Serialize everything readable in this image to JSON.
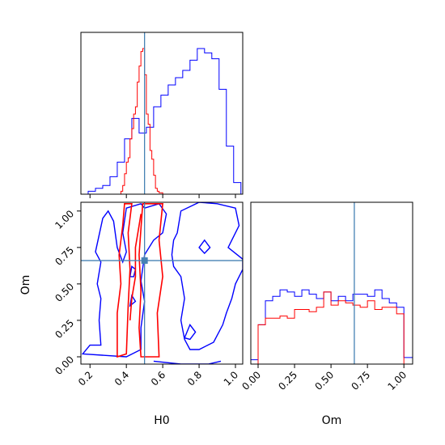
{
  "chart_data": {
    "type": "corner",
    "parameters": [
      "H0",
      "Om"
    ],
    "truths": {
      "H0": 0.5,
      "Om": 0.66
    },
    "colors": {
      "blue": "#0000ff",
      "red": "#ff0000",
      "truth": "#4682b4",
      "frame": "#000000"
    },
    "axes": {
      "H0": {
        "label": "H0",
        "range": [
          0.15,
          1.04
        ],
        "ticks": [
          0.2,
          0.4,
          0.6,
          0.8,
          1.0
        ],
        "tick_labels": [
          "0.2",
          "0.4",
          "0.6",
          "0.8",
          "1.0"
        ]
      },
      "Om": {
        "label": "Om",
        "range": [
          -0.05,
          1.06
        ],
        "ticks": [
          0.0,
          0.25,
          0.5,
          0.75,
          1.0
        ],
        "tick_labels": [
          "0.00",
          "0.25",
          "0.50",
          "0.75",
          "1.00"
        ]
      }
    },
    "hist_H0": {
      "bin_edges": [
        0.15,
        0.19,
        0.23,
        0.27,
        0.31,
        0.35,
        0.39,
        0.43,
        0.47,
        0.51,
        0.55,
        0.59,
        0.63,
        0.67,
        0.71,
        0.75,
        0.79,
        0.83,
        0.87,
        0.91,
        0.95,
        0.99,
        1.03
      ],
      "series": [
        {
          "color": "blue",
          "counts": [
            0,
            0.02,
            0.04,
            0.06,
            0.12,
            0.22,
            0.38,
            0.52,
            0.42,
            0.46,
            0.6,
            0.68,
            0.75,
            0.8,
            0.85,
            0.92,
            1.0,
            0.97,
            0.93,
            0.72,
            0.33,
            0.08
          ]
        }
      ]
    },
    "hist_H0_red": {
      "x": [
        0.37,
        0.38,
        0.39,
        0.4,
        0.41,
        0.42,
        0.43,
        0.44,
        0.45,
        0.46,
        0.47,
        0.48,
        0.49,
        0.5,
        0.51,
        0.52,
        0.53,
        0.54,
        0.55,
        0.56,
        0.57,
        0.58,
        0.59,
        0.6,
        0.61
      ],
      "counts": [
        0.02,
        0.06,
        0.14,
        0.22,
        0.25,
        0.38,
        0.45,
        0.55,
        0.6,
        0.77,
        0.88,
        0.98,
        1.0,
        0.82,
        0.55,
        0.48,
        0.3,
        0.24,
        0.13,
        0.04,
        0.02,
        0.01,
        0.01,
        0.0,
        0.0
      ]
    },
    "hist_Om": {
      "bin_edges": [
        -0.05,
        0.0,
        0.05,
        0.1,
        0.15,
        0.2,
        0.25,
        0.3,
        0.35,
        0.4,
        0.45,
        0.5,
        0.55,
        0.6,
        0.65,
        0.7,
        0.75,
        0.8,
        0.85,
        0.9,
        0.95,
        1.0,
        1.06
      ],
      "series": [
        {
          "color": "blue",
          "counts": [
            0.02,
            0.18,
            0.29,
            0.31,
            0.34,
            0.33,
            0.31,
            0.34,
            0.32,
            0.3,
            0.33,
            0.29,
            0.31,
            0.29,
            0.32,
            0.32,
            0.31,
            0.34,
            0.3,
            0.28,
            0.26,
            0.03
          ]
        },
        {
          "color": "red",
          "counts": [
            0,
            0.18,
            0.21,
            0.21,
            0.22,
            0.21,
            0.25,
            0.25,
            0.24,
            0.26,
            0.33,
            0.27,
            0.29,
            0.28,
            0.27,
            0.26,
            0.29,
            0.25,
            0.26,
            0.26,
            0.23,
            0
          ]
        }
      ]
    },
    "contours_2d": {
      "x_param": "H0",
      "y_param": "Om",
      "red": [
        [
          [
            0.35,
            0.0
          ],
          [
            0.35,
            0.3
          ],
          [
            0.37,
            0.5
          ],
          [
            0.36,
            0.7
          ],
          [
            0.38,
            0.9
          ],
          [
            0.39,
            1.05
          ],
          [
            0.43,
            1.05
          ],
          [
            0.41,
            0.85
          ],
          [
            0.42,
            0.6
          ],
          [
            0.41,
            0.35
          ],
          [
            0.4,
            0.02
          ]
        ],
        [
          [
            0.48,
            0.0
          ],
          [
            0.47,
            0.2
          ],
          [
            0.48,
            0.45
          ],
          [
            0.47,
            0.7
          ],
          [
            0.49,
            1.05
          ],
          [
            0.6,
            1.05
          ],
          [
            0.58,
            0.8
          ],
          [
            0.6,
            0.55
          ],
          [
            0.57,
            0.3
          ],
          [
            0.58,
            0.0
          ]
        ],
        [
          [
            0.42,
            0.25
          ],
          [
            0.43,
            0.4
          ],
          [
            0.45,
            0.55
          ],
          [
            0.45,
            0.75
          ],
          [
            0.47,
            0.9
          ],
          [
            0.48,
            0.98
          ]
        ]
      ],
      "blue": [
        [
          [
            0.16,
            0.02
          ],
          [
            0.2,
            0.08
          ],
          [
            0.26,
            0.08
          ],
          [
            0.25,
            0.25
          ],
          [
            0.26,
            0.4
          ],
          [
            0.24,
            0.5
          ],
          [
            0.26,
            0.65
          ],
          [
            0.23,
            0.72
          ],
          [
            0.27,
            0.95
          ],
          [
            0.3,
            1.0
          ],
          [
            0.33,
            0.93
          ],
          [
            0.35,
            0.75
          ],
          [
            0.38,
            0.65
          ],
          [
            0.4,
            0.72
          ],
          [
            0.38,
            0.85
          ],
          [
            0.4,
            1.02
          ],
          [
            0.48,
            1.05
          ],
          [
            0.5,
            1.02
          ],
          [
            0.58,
            1.05
          ],
          [
            0.62,
            0.98
          ],
          [
            0.6,
            0.85
          ],
          [
            0.55,
            0.8
          ],
          [
            0.5,
            0.7
          ],
          [
            0.48,
            0.52
          ],
          [
            0.5,
            0.38
          ],
          [
            0.48,
            0.2
          ],
          [
            0.48,
            0.05
          ],
          [
            0.4,
            0.0
          ]
        ],
        [
          [
            0.68,
            0.85
          ],
          [
            0.7,
            1.0
          ],
          [
            0.8,
            1.06
          ],
          [
            0.9,
            1.05
          ],
          [
            1.0,
            1.02
          ],
          [
            1.02,
            0.9
          ],
          [
            0.98,
            0.8
          ],
          [
            0.96,
            0.75
          ],
          [
            1.04,
            0.67
          ],
          [
            1.04,
            0.6
          ],
          [
            1.0,
            0.5
          ],
          [
            0.98,
            0.4
          ],
          [
            0.95,
            0.3
          ],
          [
            0.93,
            0.22
          ],
          [
            0.88,
            0.1
          ],
          [
            0.8,
            0.05
          ],
          [
            0.75,
            0.05
          ],
          [
            0.72,
            0.12
          ],
          [
            0.7,
            0.25
          ],
          [
            0.72,
            0.4
          ],
          [
            0.7,
            0.55
          ],
          [
            0.66,
            0.62
          ],
          [
            0.65,
            0.7
          ],
          [
            0.66,
            0.8
          ]
        ],
        [
          [
            0.42,
            0.55
          ],
          [
            0.43,
            0.62
          ],
          [
            0.45,
            0.6
          ],
          [
            0.44,
            0.55
          ]
        ],
        [
          [
            0.42,
            0.35
          ],
          [
            0.43,
            0.42
          ],
          [
            0.45,
            0.38
          ]
        ],
        [
          [
            0.8,
            0.75
          ],
          [
            0.83,
            0.8
          ],
          [
            0.86,
            0.75
          ],
          [
            0.83,
            0.71
          ]
        ],
        [
          [
            0.72,
            0.13
          ],
          [
            0.75,
            0.22
          ],
          [
            0.78,
            0.17
          ],
          [
            0.75,
            0.12
          ]
        ],
        [
          [
            0.55,
            -0.03
          ],
          [
            0.7,
            -0.05
          ],
          [
            0.85,
            -0.05
          ],
          [
            0.92,
            -0.03
          ]
        ]
      ]
    }
  }
}
